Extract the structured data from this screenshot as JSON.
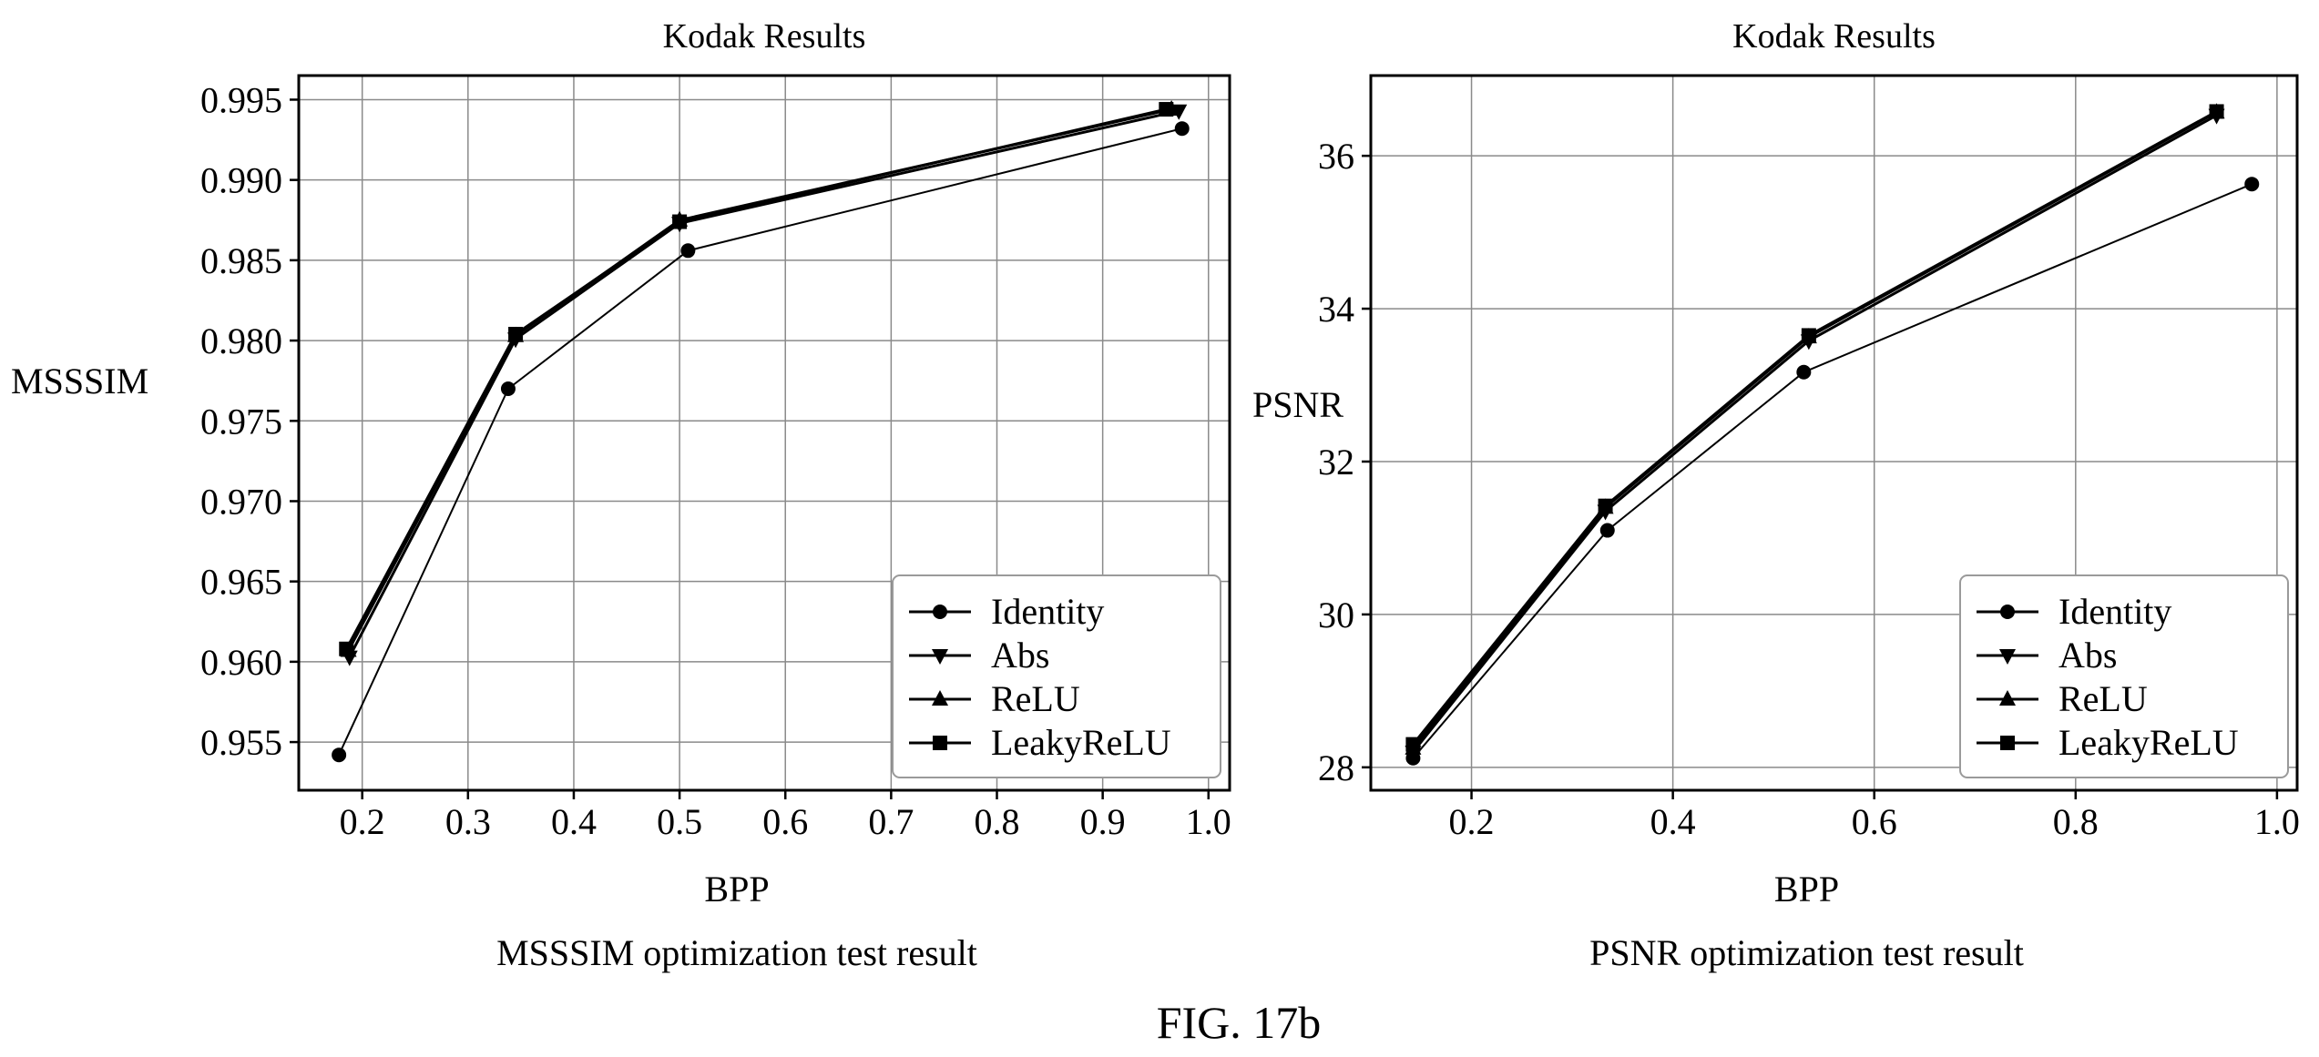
{
  "figure_label": "FIG. 17b",
  "chart_data": [
    {
      "type": "line",
      "title": "Kodak Results",
      "caption": "MSSSIM optimization test result",
      "xlabel": "BPP",
      "ylabel": "MSSSIM",
      "xlim": [
        0.14,
        1.02
      ],
      "ylim": [
        0.952,
        0.9965
      ],
      "xticks": [
        0.2,
        0.3,
        0.4,
        0.5,
        0.6,
        0.7,
        0.8,
        0.9,
        1.0
      ],
      "xtick_labels": [
        "0.2",
        "0.3",
        "0.4",
        "0.5",
        "0.6",
        "0.7",
        "0.8",
        "0.9",
        "1.0"
      ],
      "yticks": [
        0.955,
        0.96,
        0.965,
        0.97,
        0.975,
        0.98,
        0.985,
        0.99,
        0.995
      ],
      "ytick_labels": [
        "0.955",
        "0.960",
        "0.965",
        "0.970",
        "0.975",
        "0.980",
        "0.985",
        "0.990",
        "0.995"
      ],
      "grid": true,
      "legend_position": "lower-right",
      "series": [
        {
          "name": "Identity",
          "marker": "circle",
          "width": 2,
          "x": [
            0.178,
            0.338,
            0.508,
            0.975
          ],
          "y": [
            0.9542,
            0.977,
            0.9856,
            0.9932
          ]
        },
        {
          "name": "Abs",
          "marker": "triangle-down",
          "width": 3,
          "x": [
            0.188,
            0.345,
            0.5,
            0.972
          ],
          "y": [
            0.9603,
            0.9801,
            0.9873,
            0.9943
          ]
        },
        {
          "name": "ReLU",
          "marker": "triangle-up",
          "width": 3,
          "x": [
            0.187,
            0.345,
            0.5,
            0.965
          ],
          "y": [
            0.9607,
            0.9803,
            0.9875,
            0.9944
          ]
        },
        {
          "name": "LeakyReLU",
          "marker": "square",
          "width": 3,
          "x": [
            0.185,
            0.345,
            0.5,
            0.96
          ],
          "y": [
            0.9608,
            0.9804,
            0.9874,
            0.9944
          ]
        }
      ]
    },
    {
      "type": "line",
      "title": "Kodak Results",
      "caption": "PSNR optimization test result",
      "xlabel": "BPP",
      "ylabel": "PSNR",
      "xlim": [
        0.1,
        1.02
      ],
      "ylim": [
        27.7,
        37.05
      ],
      "xticks": [
        0.2,
        0.4,
        0.6,
        0.8,
        1.0
      ],
      "xtick_labels": [
        "0.2",
        "0.4",
        "0.6",
        "0.8",
        "1.0"
      ],
      "yticks": [
        28,
        30,
        32,
        34,
        36
      ],
      "ytick_labels": [
        "28",
        "30",
        "32",
        "34",
        "36"
      ],
      "grid": true,
      "legend_position": "lower-right",
      "series": [
        {
          "name": "Identity",
          "marker": "circle",
          "width": 2,
          "x": [
            0.142,
            0.335,
            0.53,
            0.975
          ],
          "y": [
            28.12,
            31.1,
            33.17,
            35.63
          ]
        },
        {
          "name": "Abs",
          "marker": "triangle-down",
          "width": 3,
          "x": [
            0.142,
            0.333,
            0.535,
            0.94
          ],
          "y": [
            28.2,
            31.35,
            33.58,
            36.53
          ]
        },
        {
          "name": "ReLU",
          "marker": "triangle-up",
          "width": 3,
          "x": [
            0.142,
            0.333,
            0.535,
            0.94
          ],
          "y": [
            28.25,
            31.4,
            33.63,
            36.57
          ]
        },
        {
          "name": "LeakyReLU",
          "marker": "square",
          "width": 3,
          "x": [
            0.142,
            0.333,
            0.535,
            0.94
          ],
          "y": [
            28.3,
            31.42,
            33.65,
            36.58
          ]
        }
      ]
    }
  ]
}
